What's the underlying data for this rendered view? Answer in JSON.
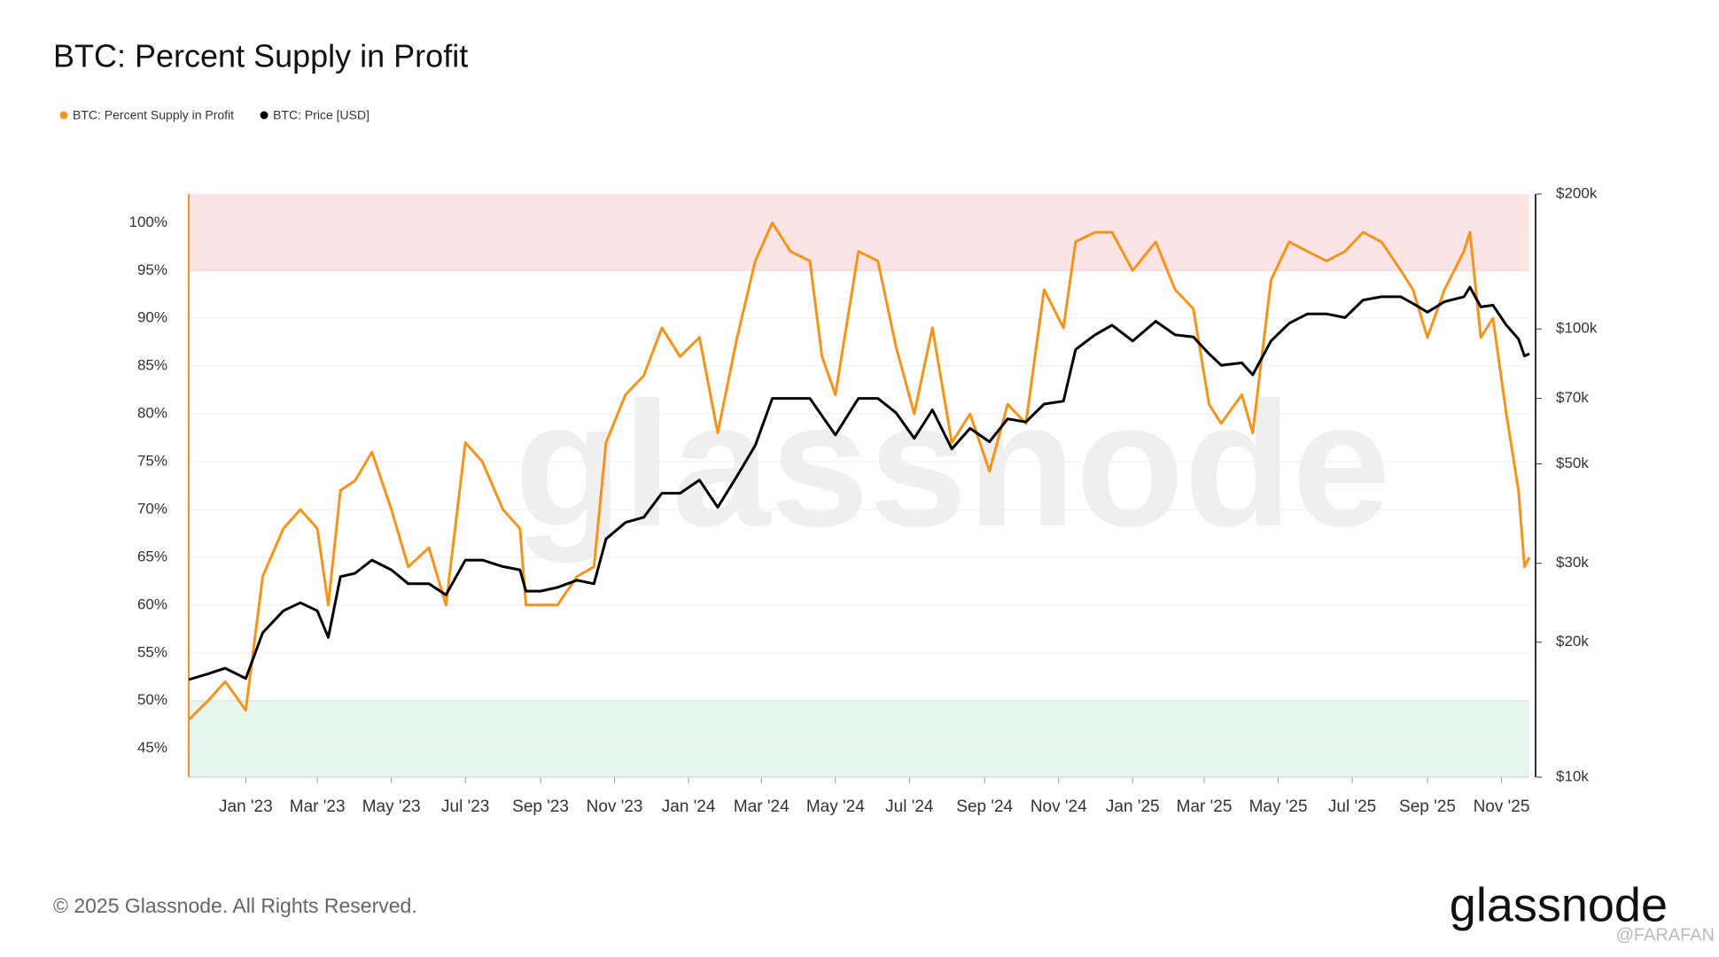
{
  "chart_data": {
    "type": "line",
    "title": "BTC: Percent Supply in Profit",
    "watermark": "glassnode",
    "footer": "© 2025 Glassnode. All Rights Reserved.",
    "logo": "glassnode",
    "credit": "@FARAFAN",
    "legend": "top-left",
    "grid": true,
    "xlim": [
      "2022-11-15",
      "2025-11-24"
    ],
    "xticks": [
      {
        "value": "2023-01-01",
        "label": "Jan '23"
      },
      {
        "value": "2023-03-01",
        "label": "Mar '23"
      },
      {
        "value": "2023-05-01",
        "label": "May '23"
      },
      {
        "value": "2023-07-01",
        "label": "Jul '23"
      },
      {
        "value": "2023-09-01",
        "label": "Sep '23"
      },
      {
        "value": "2023-11-01",
        "label": "Nov '23"
      },
      {
        "value": "2024-01-01",
        "label": "Jan '24"
      },
      {
        "value": "2024-03-01",
        "label": "Mar '24"
      },
      {
        "value": "2024-05-01",
        "label": "May '24"
      },
      {
        "value": "2024-07-01",
        "label": "Jul '24"
      },
      {
        "value": "2024-09-01",
        "label": "Sep '24"
      },
      {
        "value": "2024-11-01",
        "label": "Nov '24"
      },
      {
        "value": "2025-01-01",
        "label": "Jan '25"
      },
      {
        "value": "2025-03-01",
        "label": "Mar '25"
      },
      {
        "value": "2025-05-01",
        "label": "May '25"
      },
      {
        "value": "2025-07-01",
        "label": "Jul '25"
      },
      {
        "value": "2025-09-01",
        "label": "Sep '25"
      },
      {
        "value": "2025-11-01",
        "label": "Nov '25"
      }
    ],
    "ylim": [
      42,
      103
    ],
    "yticks": [
      {
        "value": 45,
        "label": "45%"
      },
      {
        "value": 50,
        "label": "50%"
      },
      {
        "value": 55,
        "label": "55%"
      },
      {
        "value": 60,
        "label": "60%"
      },
      {
        "value": 65,
        "label": "65%"
      },
      {
        "value": 70,
        "label": "70%"
      },
      {
        "value": 75,
        "label": "75%"
      },
      {
        "value": 80,
        "label": "80%"
      },
      {
        "value": 85,
        "label": "85%"
      },
      {
        "value": 90,
        "label": "90%"
      },
      {
        "value": 95,
        "label": "95%"
      },
      {
        "value": 100,
        "label": "100%"
      }
    ],
    "y2lim": [
      10000,
      200000
    ],
    "y2log": true,
    "y2ticks": [
      {
        "value": 10000,
        "label": "$10k"
      },
      {
        "value": 20000,
        "label": "$20k"
      },
      {
        "value": 30000,
        "label": "$30k"
      },
      {
        "value": 50000,
        "label": "$50k"
      },
      {
        "value": 70000,
        "label": "$70k"
      },
      {
        "value": 100000,
        "label": "$100k"
      },
      {
        "value": 200000,
        "label": "$200k"
      }
    ],
    "bands": [
      {
        "from": 95,
        "to": 103,
        "color": "#fde4e4",
        "edge": "#f0a0a0"
      },
      {
        "from": 42,
        "to": 50,
        "color": "#e6f6ee",
        "edge": "#9fd4b4"
      }
    ],
    "x": [
      "2022-11-15",
      "2022-12-01",
      "2022-12-15",
      "2023-01-01",
      "2023-01-15",
      "2023-02-01",
      "2023-02-15",
      "2023-03-01",
      "2023-03-10",
      "2023-03-20",
      "2023-04-01",
      "2023-04-15",
      "2023-05-01",
      "2023-05-15",
      "2023-06-01",
      "2023-06-15",
      "2023-07-01",
      "2023-07-15",
      "2023-08-01",
      "2023-08-15",
      "2023-08-20",
      "2023-09-01",
      "2023-09-15",
      "2023-10-01",
      "2023-10-15",
      "2023-10-25",
      "2023-11-10",
      "2023-11-25",
      "2023-12-10",
      "2023-12-25",
      "2024-01-10",
      "2024-01-25",
      "2024-02-10",
      "2024-02-25",
      "2024-03-10",
      "2024-03-25",
      "2024-04-10",
      "2024-04-20",
      "2024-05-01",
      "2024-05-20",
      "2024-06-05",
      "2024-06-20",
      "2024-07-05",
      "2024-07-20",
      "2024-08-05",
      "2024-08-20",
      "2024-09-05",
      "2024-09-20",
      "2024-10-05",
      "2024-10-20",
      "2024-11-05",
      "2024-11-15",
      "2024-12-01",
      "2024-12-15",
      "2025-01-01",
      "2025-01-20",
      "2025-02-05",
      "2025-02-20",
      "2025-03-05",
      "2025-03-15",
      "2025-04-01",
      "2025-04-10",
      "2025-04-25",
      "2025-05-10",
      "2025-05-25",
      "2025-06-10",
      "2025-06-25",
      "2025-07-10",
      "2025-07-25",
      "2025-08-10",
      "2025-08-20",
      "2025-09-01",
      "2025-09-15",
      "2025-10-01",
      "2025-10-06",
      "2025-10-15",
      "2025-10-25",
      "2025-11-05",
      "2025-11-15",
      "2025-11-20",
      "2025-11-24"
    ],
    "series": [
      {
        "name": "BTC: Percent Supply in Profit",
        "color": "#f7931a",
        "axis": "y",
        "values": [
          48,
          50,
          52,
          49,
          63,
          68,
          70,
          68,
          60,
          72,
          73,
          76,
          70,
          64,
          66,
          60,
          77,
          75,
          70,
          68,
          60,
          60,
          60,
          63,
          64,
          77,
          82,
          84,
          89,
          86,
          88,
          78,
          88,
          96,
          100,
          97,
          96,
          86,
          82,
          97,
          96,
          87,
          80,
          89,
          77,
          80,
          74,
          81,
          79,
          93,
          89,
          98,
          99,
          99,
          95,
          98,
          93,
          91,
          81,
          79,
          82,
          78,
          94,
          98,
          97,
          96,
          97,
          99,
          98,
          95,
          93,
          88,
          93,
          97,
          99,
          88,
          90,
          80,
          72,
          64,
          65
        ]
      },
      {
        "name": "BTC: Price [USD]",
        "color": "#000000",
        "axis": "y2",
        "values": [
          16500,
          17000,
          17500,
          16600,
          21000,
          23500,
          24500,
          23500,
          20500,
          28000,
          28500,
          30500,
          29000,
          27000,
          27000,
          25500,
          30500,
          30500,
          29500,
          29000,
          26000,
          26000,
          26500,
          27500,
          27000,
          34000,
          37000,
          38000,
          43000,
          43000,
          46000,
          40000,
          47000,
          55000,
          70000,
          70000,
          70000,
          64000,
          58000,
          70000,
          70000,
          65000,
          57000,
          66000,
          54000,
          60000,
          56000,
          63000,
          62000,
          68000,
          69000,
          90000,
          97000,
          102000,
          94000,
          104000,
          97000,
          96000,
          88000,
          83000,
          84000,
          79000,
          94000,
          103000,
          108000,
          108000,
          106000,
          116000,
          118000,
          118000,
          114000,
          109000,
          115000,
          118000,
          124000,
          112000,
          113000,
          102000,
          95000,
          87000,
          88000
        ]
      }
    ]
  }
}
